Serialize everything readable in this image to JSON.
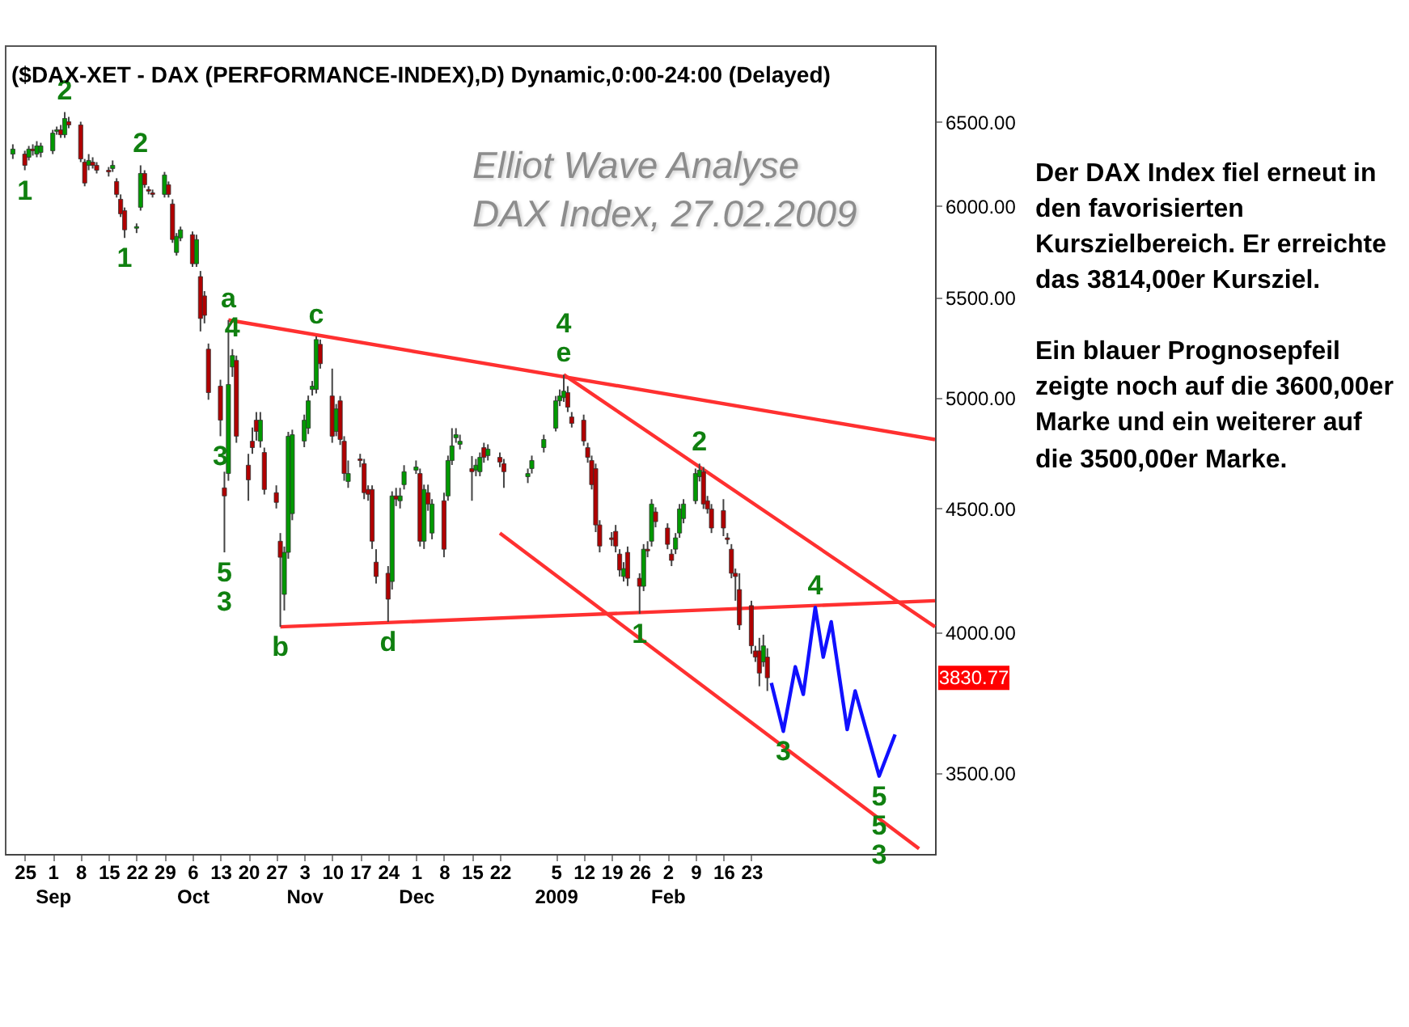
{
  "chart_data": {
    "type": "candlestick",
    "title": "($DAX-XET - DAX (PERFORMANCE-INDEX),D) Dynamic,0:00-24:00 (Delayed)",
    "subtitle": "Elliot Wave Analyse\nDAX Index, 27.02.2009",
    "log": true,
    "colors": [
      "#009900",
      "#b00000",
      "#009900",
      "#b00000",
      "#009900",
      "#009900",
      "#009900",
      "#009900",
      "#b00000",
      "#009900",
      "#b00000",
      "#b00000",
      "#b00000",
      "#009900",
      "#b00000",
      "#b00000",
      "#b00000",
      "#009900",
      "#b00000",
      "#b00000",
      "#b00000",
      "#009900",
      "#009900",
      "#b00000",
      "#b00000",
      "#b00000",
      "#009900",
      "#b00000",
      "#b00000",
      "#009900",
      "#009900",
      "#b00000",
      "#009900",
      "#b00000",
      "#b00000",
      "#b00000",
      "#b00000",
      "#b00000",
      "#009900",
      "#009900",
      "#b00000",
      "#b00000",
      "#b00000",
      "#b00000",
      "#009900",
      "#b00000",
      "#b00000",
      "#b00000",
      "#009900",
      "#009900",
      "#009900",
      "#009900",
      "#009900",
      "#009900",
      "#009900",
      "#b00000",
      "#b00000",
      "#009900",
      "#b00000",
      "#b00000",
      "#009900",
      "#b00000",
      "#b00000",
      "#b00000",
      "#b00000",
      "#b00000",
      "#b00000",
      "#009900",
      "#b00000",
      "#009900",
      "#009900",
      "#009900",
      "#b00000",
      "#009900",
      "#b00000",
      "#009900",
      "#b00000",
      "#009900",
      "#009900",
      "#009900",
      "#009900",
      "#b00000",
      "#009900",
      "#009900",
      "#b00000",
      "#009900",
      "#b00000",
      "#b00000",
      "#009900",
      "#009900",
      "#009900",
      "#009900",
      "#009900",
      "#009900",
      "#b00000",
      "#b00000",
      "#b00000",
      "#b00000",
      "#b00000",
      "#b00000",
      "#b00000",
      "#b00000",
      "#b00000",
      "#b00000",
      "#009900",
      "#b00000",
      "#b00000",
      "#009900",
      "#b00000",
      "#009900",
      "#b00000",
      "#b00000",
      "#b00000",
      "#009900",
      "#009900",
      "#009900",
      "#009900",
      "#009900",
      "#b00000",
      "#b00000",
      "#b00000",
      "#b00000",
      "#b00000",
      "#b00000",
      "#b00000",
      "#b00000",
      "#b00000",
      "#b00000",
      "#b00000",
      "#009900",
      "#b00000"
    ],
    "x": [
      "2008-08-22",
      "2008-08-25",
      "2008-08-26",
      "2008-08-27",
      "2008-08-28",
      "2008-08-29",
      "2008-09-01",
      "2008-09-02",
      "2008-09-03",
      "2008-09-04",
      "2008-09-05",
      "2008-09-08",
      "2008-09-09",
      "2008-09-10",
      "2008-09-11",
      "2008-09-12",
      "2008-09-15",
      "2008-09-16",
      "2008-09-17",
      "2008-09-18",
      "2008-09-19",
      "2008-09-22",
      "2008-09-23",
      "2008-09-24",
      "2008-09-25",
      "2008-09-26",
      "2008-09-29",
      "2008-09-30",
      "2008-10-01",
      "2008-10-02",
      "2008-10-03",
      "2008-10-06",
      "2008-10-07",
      "2008-10-08",
      "2008-10-09",
      "2008-10-10",
      "2008-10-13",
      "2008-10-14",
      "2008-10-15",
      "2008-10-16",
      "2008-10-17",
      "2008-10-20",
      "2008-10-21",
      "2008-10-22",
      "2008-10-23",
      "2008-10-24",
      "2008-10-27",
      "2008-10-28",
      "2008-10-29",
      "2008-10-30",
      "2008-10-31",
      "2008-11-03",
      "2008-11-04",
      "2008-11-05",
      "2008-11-06",
      "2008-11-07",
      "2008-11-10",
      "2008-11-11",
      "2008-11-12",
      "2008-11-13",
      "2008-11-14",
      "2008-11-17",
      "2008-11-18",
      "2008-11-19",
      "2008-11-20",
      "2008-11-21",
      "2008-11-24",
      "2008-11-25",
      "2008-11-26",
      "2008-11-27",
      "2008-11-28",
      "2008-12-01",
      "2008-12-02",
      "2008-12-03",
      "2008-12-04",
      "2008-12-05",
      "2008-12-08",
      "2008-12-09",
      "2008-12-10",
      "2008-12-11",
      "2008-12-12",
      "2008-12-15",
      "2008-12-16",
      "2008-12-17",
      "2008-12-18",
      "2008-12-19",
      "2008-12-22",
      "2008-12-23",
      "2008-12-29",
      "2008-12-30",
      "2009-01-02",
      "2009-01-05",
      "2009-01-06",
      "2009-01-07",
      "2009-01-08",
      "2009-01-09",
      "2009-01-12",
      "2009-01-13",
      "2009-01-14",
      "2009-01-15",
      "2009-01-16",
      "2009-01-19",
      "2009-01-20",
      "2009-01-21",
      "2009-01-22",
      "2009-01-23",
      "2009-01-26",
      "2009-01-27",
      "2009-01-28",
      "2009-01-29",
      "2009-01-30",
      "2009-02-02",
      "2009-02-03",
      "2009-02-04",
      "2009-02-05",
      "2009-02-06",
      "2009-02-09",
      "2009-02-10",
      "2009-02-11",
      "2009-02-12",
      "2009-02-13",
      "2009-02-16",
      "2009-02-17",
      "2009-02-18",
      "2009-02-19",
      "2009-02-20",
      "2009-02-23",
      "2009-02-24",
      "2009-02-25",
      "2009-02-26",
      "2009-02-27"
    ],
    "ohlc": [
      [
        6303,
        6362,
        6274,
        6333
      ],
      [
        6303,
        6323,
        6207,
        6236
      ],
      [
        6284,
        6352,
        6265,
        6333
      ],
      [
        6333,
        6362,
        6294,
        6323
      ],
      [
        6303,
        6381,
        6284,
        6352
      ],
      [
        6313,
        6371,
        6284,
        6352
      ],
      [
        6323,
        6450,
        6303,
        6430
      ],
      [
        6440,
        6470,
        6420,
        6450
      ],
      [
        6450,
        6480,
        6401,
        6420
      ],
      [
        6420,
        6560,
        6401,
        6520
      ],
      [
        6500,
        6530,
        6460,
        6480
      ],
      [
        6480,
        6500,
        6255,
        6274
      ],
      [
        6255,
        6274,
        6113,
        6132
      ],
      [
        6236,
        6303,
        6207,
        6265
      ],
      [
        6255,
        6284,
        6217,
        6236
      ],
      [
        6236,
        6255,
        6188,
        6207
      ],
      [
        6207,
        6226,
        6170,
        6197
      ],
      [
        6217,
        6265,
        6197,
        6236
      ],
      [
        6141,
        6160,
        6048,
        6066
      ],
      [
        6038,
        6066,
        5937,
        5955
      ],
      [
        5973,
        5991,
        5820,
        5865
      ],
      [
        5874,
        5901,
        5847,
        5883
      ],
      [
        5992,
        6236,
        5973,
        6188
      ],
      [
        6188,
        6207,
        6104,
        6122
      ],
      [
        6094,
        6113,
        6066,
        6085
      ],
      [
        6075,
        6094,
        6048,
        6066
      ],
      [
        6066,
        6197,
        6048,
        6179
      ],
      [
        6122,
        6141,
        6048,
        6066
      ],
      [
        6011,
        6038,
        5793,
        5811
      ],
      [
        5740,
        5847,
        5723,
        5829
      ],
      [
        5820,
        5883,
        5802,
        5865
      ],
      [
        5838,
        5856,
        5662,
        5679
      ],
      [
        5679,
        5838,
        5662,
        5811
      ],
      [
        5610,
        5640,
        5325,
        5391
      ],
      [
        5508,
        5533,
        5366,
        5407
      ],
      [
        5236,
        5264,
        4990,
        5024
      ],
      [
        5055,
        5086,
        4820,
        4894
      ],
      [
        4589,
        4660,
        4316,
        4554
      ],
      [
        4652,
        5383,
        4620,
        5063
      ],
      [
        5148,
        5236,
        5100,
        5204
      ],
      [
        5180,
        5204,
        4790,
        4820
      ],
      [
        4689,
        4740,
        4533,
        4624
      ],
      [
        4797,
        4860,
        4740,
        4768
      ],
      [
        4894,
        4932,
        4800,
        4842
      ],
      [
        4798,
        4932,
        4768,
        4894
      ],
      [
        4746,
        4768,
        4560,
        4582
      ],
      [
        4568,
        4600,
        4500,
        4526
      ],
      [
        4362,
        4396,
        4021,
        4296
      ],
      [
        4147,
        4340,
        4084,
        4316
      ],
      [
        4316,
        4840,
        4290,
        4820
      ],
      [
        4478,
        4850,
        4450,
        4827
      ],
      [
        4798,
        4920,
        4770,
        4894
      ],
      [
        4857,
        5010,
        4830,
        4985
      ],
      [
        5039,
        5080,
        5010,
        5055
      ],
      [
        5039,
        5300,
        5020,
        5284
      ],
      [
        5260,
        5284,
        5140,
        5164
      ],
      [
        5008,
        5140,
        4790,
        4820
      ],
      [
        4842,
        4970,
        4820,
        4947
      ],
      [
        4985,
        5008,
        4780,
        4805
      ],
      [
        4797,
        4820,
        4620,
        4652
      ],
      [
        4617,
        4710,
        4589,
        4652
      ],
      [
        4717,
        4740,
        4680,
        4710
      ],
      [
        4696,
        4717,
        4540,
        4568
      ],
      [
        4582,
        4600,
        4533,
        4561
      ],
      [
        4582,
        4600,
        4330,
        4362
      ],
      [
        4276,
        4329,
        4190,
        4218
      ],
      [
        4231,
        4260,
        4040,
        4128
      ],
      [
        4198,
        4574,
        4166,
        4554
      ],
      [
        4554,
        4589,
        4510,
        4540
      ],
      [
        4533,
        4589,
        4500,
        4554
      ],
      [
        4603,
        4689,
        4582,
        4660
      ],
      [
        4667,
        4710,
        4650,
        4681
      ],
      [
        4652,
        4674,
        4340,
        4362
      ],
      [
        4362,
        4603,
        4330,
        4582
      ],
      [
        4568,
        4603,
        4490,
        4519
      ],
      [
        4396,
        4540,
        4370,
        4519
      ],
      [
        4533,
        4568,
        4296,
        4329
      ],
      [
        4554,
        4732,
        4533,
        4710
      ],
      [
        4710,
        4857,
        4690,
        4776
      ],
      [
        4813,
        4857,
        4790,
        4827
      ],
      [
        4783,
        4827,
        4760,
        4797
      ],
      [
        4674,
        4730,
        4533,
        4660
      ],
      [
        4667,
        4717,
        4640,
        4689
      ],
      [
        4660,
        4746,
        4640,
        4724
      ],
      [
        4768,
        4790,
        4700,
        4724
      ],
      [
        4732,
        4783,
        4710,
        4761
      ],
      [
        4724,
        4746,
        4680,
        4703
      ],
      [
        4696,
        4717,
        4589,
        4660
      ],
      [
        4638,
        4674,
        4610,
        4652
      ],
      [
        4674,
        4732,
        4652,
        4710
      ],
      [
        4768,
        4827,
        4746,
        4805
      ],
      [
        4857,
        5008,
        4842,
        4985
      ],
      [
        4985,
        5039,
        4960,
        5008
      ],
      [
        5000,
        5110,
        4980,
        5031
      ],
      [
        5024,
        5055,
        4932,
        4955
      ],
      [
        4909,
        4932,
        4860,
        4879
      ],
      [
        4894,
        4920,
        4776,
        4798
      ],
      [
        4768,
        4790,
        4700,
        4724
      ],
      [
        4710,
        4732,
        4582,
        4603
      ],
      [
        4674,
        4696,
        4400,
        4430
      ],
      [
        4430,
        4450,
        4316,
        4342
      ],
      [
        4376,
        4400,
        4342,
        4369
      ],
      [
        4403,
        4430,
        4316,
        4342
      ],
      [
        4309,
        4329,
        4218,
        4244
      ],
      [
        4218,
        4276,
        4198,
        4250
      ],
      [
        4316,
        4340,
        4180,
        4211
      ],
      [
        4211,
        4231,
        4071,
        4179
      ],
      [
        4179,
        4350,
        4160,
        4329
      ],
      [
        4329,
        4362,
        4296,
        4322
      ],
      [
        4362,
        4540,
        4340,
        4519
      ],
      [
        4485,
        4505,
        4420,
        4444
      ],
      [
        4417,
        4437,
        4329,
        4349
      ],
      [
        4309,
        4329,
        4260,
        4283
      ],
      [
        4329,
        4396,
        4309,
        4376
      ],
      [
        4396,
        4519,
        4376,
        4498
      ],
      [
        4457,
        4540,
        4437,
        4519
      ],
      [
        4533,
        4674,
        4519,
        4652
      ],
      [
        4638,
        4696,
        4617,
        4667
      ],
      [
        4660,
        4681,
        4498,
        4519
      ],
      [
        4533,
        4554,
        4478,
        4498
      ],
      [
        4498,
        4519,
        4396,
        4417
      ],
      [
        4491,
        4540,
        4383,
        4417
      ],
      [
        4376,
        4396,
        4349,
        4369
      ],
      [
        4329,
        4350,
        4211,
        4231
      ],
      [
        4231,
        4250,
        4122,
        4218
      ],
      [
        4166,
        4231,
        4009,
        4028
      ],
      [
        4103,
        4122,
        3919,
        3949
      ],
      [
        3930,
        3949,
        3889,
        3907
      ],
      [
        3930,
        3979,
        3800,
        3848
      ],
      [
        3889,
        3991,
        3871,
        3949
      ],
      [
        3907,
        3940,
        3783,
        3830.77
      ]
    ],
    "series": [
      {
        "type": "line",
        "color": "#ff3030",
        "x": [
          "2008-10-15",
          "2009-04-10"
        ],
        "values": [
          5383,
          4805
        ]
      },
      {
        "type": "line",
        "color": "#ff3030",
        "x": [
          "2008-10-28",
          "2009-04-10"
        ],
        "values": [
          4021,
          4122
        ]
      },
      {
        "type": "line",
        "color": "#ff3030",
        "x": [
          "2009-01-07",
          "2009-04-10"
        ],
        "values": [
          5110,
          4021
        ]
      },
      {
        "type": "line",
        "color": "#ff3030",
        "x": [
          "2008-12-22",
          "2009-04-06"
        ],
        "values": [
          4396,
          3256
        ]
      },
      {
        "type": "line",
        "color": "#1010ff",
        "x": [
          "2009-02-28",
          "2009-03-03",
          "2009-03-06",
          "2009-03-08",
          "2009-03-11",
          "2009-03-13",
          "2009-03-15",
          "2009-03-19",
          "2009-03-21",
          "2009-03-27",
          "2009-03-31"
        ],
        "values": [
          3812,
          3641,
          3871,
          3771,
          4096,
          3907,
          4040,
          3647,
          3783,
          3489,
          3630
        ]
      }
    ],
    "xlim": [
      "2008-08-20",
      "2009-04-10"
    ],
    "ylim": [
      3240,
      6990
    ],
    "xticks": [
      {
        "value": "2008-08-25",
        "label": "25"
      },
      {
        "value": "2008-09-01",
        "label": "1\nSep"
      },
      {
        "value": "2008-09-08",
        "label": "8"
      },
      {
        "value": "2008-09-15",
        "label": "15"
      },
      {
        "value": "2008-09-22",
        "label": "22"
      },
      {
        "value": "2008-09-29",
        "label": "29"
      },
      {
        "value": "2008-10-06",
        "label": "6\nOct"
      },
      {
        "value": "2008-10-13",
        "label": "13"
      },
      {
        "value": "2008-10-20",
        "label": "20"
      },
      {
        "value": "2008-10-27",
        "label": "27"
      },
      {
        "value": "2008-11-03",
        "label": "3\nNov"
      },
      {
        "value": "2008-11-10",
        "label": "10"
      },
      {
        "value": "2008-11-17",
        "label": "17"
      },
      {
        "value": "2008-11-24",
        "label": "24"
      },
      {
        "value": "2008-12-01",
        "label": "1\nDec"
      },
      {
        "value": "2008-12-08",
        "label": "8"
      },
      {
        "value": "2008-12-15",
        "label": "15"
      },
      {
        "value": "2008-12-22",
        "label": "22"
      },
      {
        "value": "2009-01-05",
        "label": "5\n2009"
      },
      {
        "value": "2009-01-12",
        "label": "12"
      },
      {
        "value": "2009-01-19",
        "label": "19"
      },
      {
        "value": "2009-01-26",
        "label": "26"
      },
      {
        "value": "2009-02-02",
        "label": "2\nFeb"
      },
      {
        "value": "2009-02-09",
        "label": "9"
      },
      {
        "value": "2009-02-16",
        "label": "16"
      },
      {
        "value": "2009-02-23",
        "label": "23"
      }
    ],
    "yticks": [
      {
        "value": 3500,
        "label": "3500.00"
      },
      {
        "value": 4000,
        "label": "4000.00"
      },
      {
        "value": 4500,
        "label": "4500.00"
      },
      {
        "value": 5000,
        "label": "5000.00"
      },
      {
        "value": 5500,
        "label": "5500.00"
      },
      {
        "value": 6000,
        "label": "6000.00"
      },
      {
        "value": 6500,
        "label": "6500.00"
      }
    ],
    "ref_lines": [
      {
        "axis": "y",
        "value": 3830.77,
        "label": "3830.77",
        "color": "#ff0000"
      }
    ],
    "annotations": [
      {
        "text": "1",
        "x": "2008-08-25",
        "y": 6207
      },
      {
        "text": "2",
        "x": "2008-09-04",
        "y": 6560
      },
      {
        "text": "2",
        "x": "2008-09-23",
        "y": 6236
      },
      {
        "text": "1",
        "x": "2008-09-19",
        "y": 5820
      },
      {
        "text": "a",
        "x": "2008-10-15",
        "y": 5383
      },
      {
        "text": "4",
        "x": "2008-10-16",
        "y": 5236
      },
      {
        "text": "3",
        "x": "2008-10-13",
        "y": 4820
      },
      {
        "text": "5",
        "x": "2008-10-14",
        "y": 4316
      },
      {
        "text": "3",
        "x": "2008-10-14",
        "y": 4316
      },
      {
        "text": "c",
        "x": "2008-11-06",
        "y": 5300
      },
      {
        "text": "b",
        "x": "2008-10-28",
        "y": 4021
      },
      {
        "text": "d",
        "x": "2008-11-24",
        "y": 4040
      },
      {
        "text": "e",
        "x": "2009-01-07",
        "y": 5110
      },
      {
        "text": "4",
        "x": "2009-01-07",
        "y": 5110
      },
      {
        "text": "1",
        "x": "2009-01-26",
        "y": 4071
      },
      {
        "text": "2",
        "x": "2009-02-10",
        "y": 4696
      },
      {
        "text": "3",
        "x": "2009-03-03",
        "y": 3641
      },
      {
        "text": "4",
        "x": "2009-03-11",
        "y": 4096
      },
      {
        "text": "5",
        "x": "2009-03-27",
        "y": 3489
      },
      {
        "text": "5",
        "x": "2009-03-27",
        "y": 3489
      },
      {
        "text": "3",
        "x": "2009-03-27",
        "y": 3489
      },
      "Der DAX Index fiel erneut in den favorisierten Kurszielbereich. Er erreichte das 3814,00er Kursziel.",
      "Ein blauer Prognosepfeil zeigte noch auf die 3600,00er Marke und ein weiterer auf die 3500,00er Marke."
    ]
  }
}
